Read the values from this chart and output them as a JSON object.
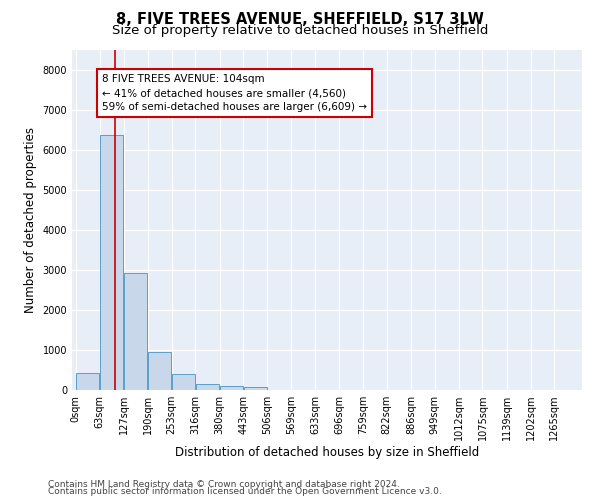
{
  "title": "8, FIVE TREES AVENUE, SHEFFIELD, S17 3LW",
  "subtitle": "Size of property relative to detached houses in Sheffield",
  "xlabel": "Distribution of detached houses by size in Sheffield",
  "ylabel": "Number of detached properties",
  "bar_color": "#c8d8ea",
  "bar_edge_color": "#5a9fc8",
  "bar_edge_width": 0.7,
  "background_color": "#ffffff",
  "plot_bg_color": "#e8eef8",
  "grid_color": "#ffffff",
  "categories": [
    "0sqm",
    "63sqm",
    "127sqm",
    "190sqm",
    "253sqm",
    "316sqm",
    "380sqm",
    "443sqm",
    "506sqm",
    "569sqm",
    "633sqm",
    "696sqm",
    "759sqm",
    "822sqm",
    "886sqm",
    "949sqm",
    "1012sqm",
    "1075sqm",
    "1139sqm",
    "1202sqm",
    "1265sqm"
  ],
  "bar_heights": [
    430,
    6380,
    2930,
    960,
    390,
    150,
    110,
    70,
    0,
    0,
    0,
    0,
    0,
    0,
    0,
    0,
    0,
    0,
    0,
    0,
    0
  ],
  "bin_edges": [
    0,
    63,
    127,
    190,
    253,
    316,
    380,
    443,
    506,
    569,
    633,
    696,
    759,
    822,
    886,
    949,
    1012,
    1075,
    1139,
    1202,
    1265
  ],
  "bin_width": 63,
  "red_line_x": 104,
  "annotation_line1": "8 FIVE TREES AVENUE: 104sqm",
  "annotation_line2": "← 41% of detached houses are smaller (4,560)",
  "annotation_line3": "59% of semi-detached houses are larger (6,609) →",
  "annotation_box_color": "#ffffff",
  "annotation_box_edge_color": "#cc0000",
  "red_line_color": "#cc0000",
  "ylim": [
    0,
    8500
  ],
  "yticks": [
    0,
    1000,
    2000,
    3000,
    4000,
    5000,
    6000,
    7000,
    8000
  ],
  "footer_line1": "Contains HM Land Registry data © Crown copyright and database right 2024.",
  "footer_line2": "Contains public sector information licensed under the Open Government Licence v3.0.",
  "title_fontsize": 10.5,
  "subtitle_fontsize": 9.5,
  "axis_label_fontsize": 8.5,
  "tick_fontsize": 7,
  "annotation_fontsize": 7.5,
  "footer_fontsize": 6.5
}
